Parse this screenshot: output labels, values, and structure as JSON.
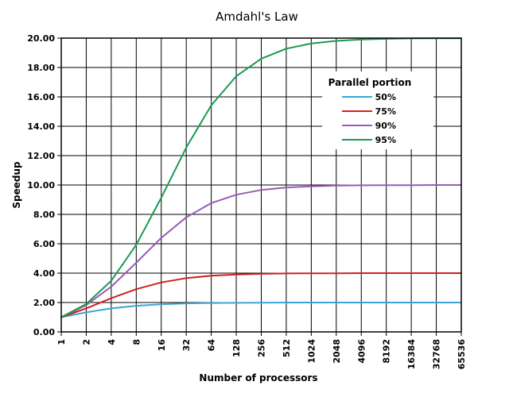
{
  "chart_data": {
    "type": "line",
    "title": "Amdahl's Law",
    "xlabel": "Number of processors",
    "ylabel": "Speedup",
    "x_scale": "log2",
    "x": [
      1,
      2,
      4,
      8,
      16,
      32,
      64,
      128,
      256,
      512,
      1024,
      2048,
      4096,
      8192,
      16384,
      32768,
      65536
    ],
    "x_tick_labels": [
      "1",
      "2",
      "4",
      "8",
      "16",
      "32",
      "64",
      "128",
      "256",
      "512",
      "1024",
      "2048",
      "4096",
      "8192",
      "16384",
      "32768",
      "65536"
    ],
    "ylim": [
      0,
      20
    ],
    "y_ticks": [
      0,
      2,
      4,
      6,
      8,
      10,
      12,
      14,
      16,
      18,
      20
    ],
    "y_tick_labels": [
      "0.00",
      "2.00",
      "4.00",
      "6.00",
      "8.00",
      "10.00",
      "12.00",
      "14.00",
      "16.00",
      "18.00",
      "20.00"
    ],
    "grid": true,
    "legend": {
      "title": "Parallel portion",
      "placement": "top-right"
    },
    "series": [
      {
        "name": "50%",
        "color": "#3aa5d8",
        "values": [
          1.0,
          1.33,
          1.6,
          1.78,
          1.88,
          1.94,
          1.97,
          1.98,
          1.99,
          2.0,
          2.0,
          2.0,
          2.0,
          2.0,
          2.0,
          2.0,
          2.0
        ]
      },
      {
        "name": "75%",
        "color": "#d02020",
        "values": [
          1.0,
          1.6,
          2.29,
          2.91,
          3.37,
          3.66,
          3.82,
          3.91,
          3.95,
          3.98,
          3.99,
          3.99,
          4.0,
          4.0,
          4.0,
          4.0,
          4.0
        ]
      },
      {
        "name": "90%",
        "color": "#9a5bb5",
        "values": [
          1.0,
          1.82,
          3.08,
          4.71,
          6.4,
          7.8,
          8.77,
          9.34,
          9.66,
          9.83,
          9.91,
          9.96,
          9.98,
          9.99,
          9.99,
          10.0,
          10.0
        ]
      },
      {
        "name": "95%",
        "color": "#1a9a50",
        "values": [
          1.0,
          1.9,
          3.48,
          5.93,
          9.14,
          12.55,
          15.42,
          17.41,
          18.6,
          19.28,
          19.63,
          19.81,
          19.91,
          19.95,
          19.98,
          19.99,
          19.99
        ]
      }
    ]
  }
}
